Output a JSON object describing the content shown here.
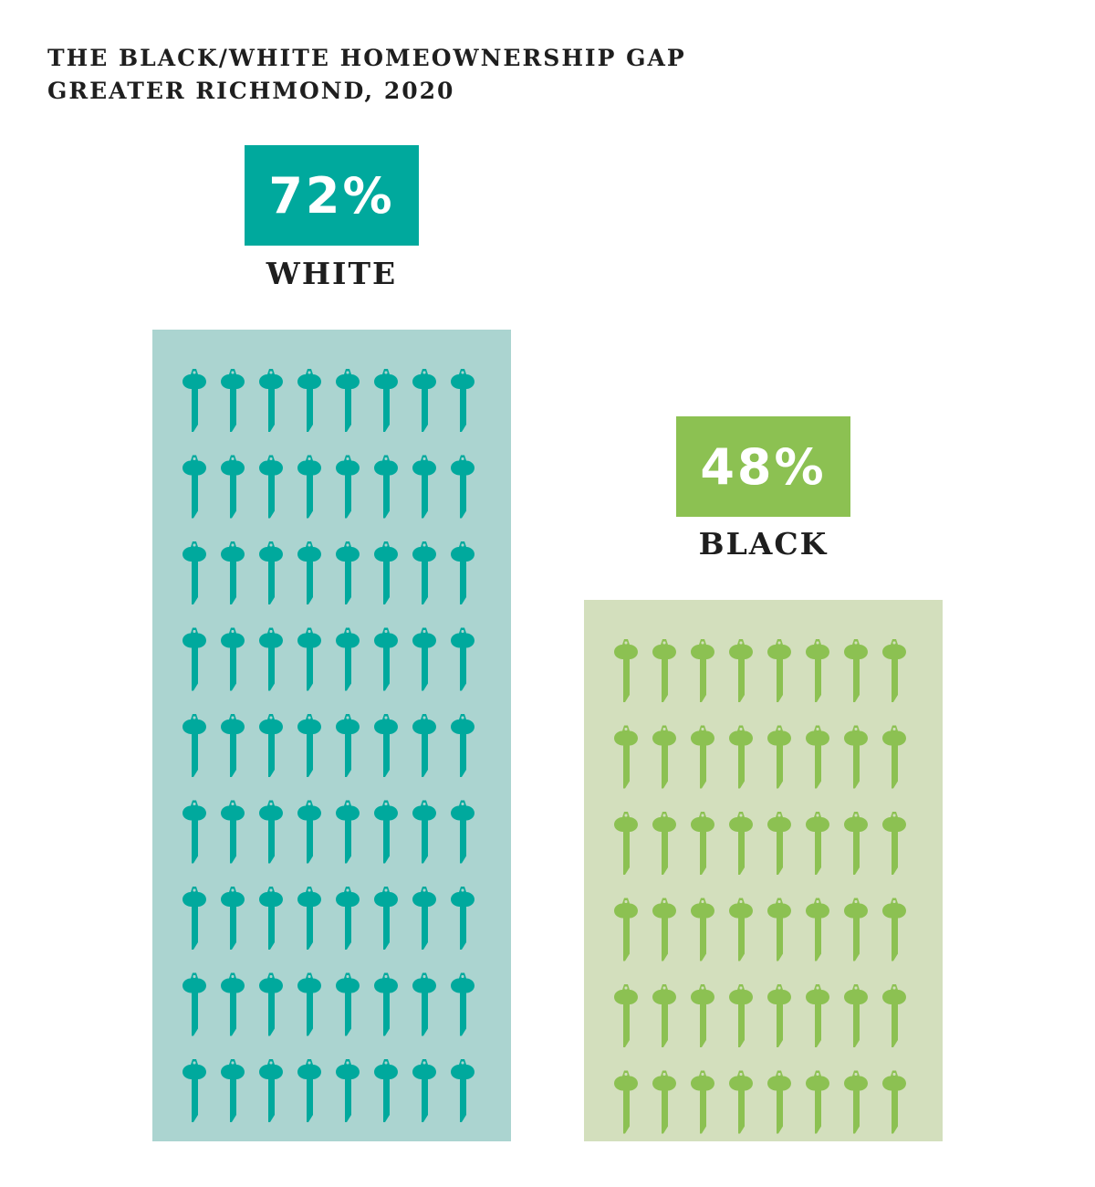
{
  "title": {
    "line1": "THE BLACK/WHITE HOMEOWNERSHIP GAP",
    "line2": "GREATER RICHMOND, 2020"
  },
  "chart_data": {
    "type": "bar",
    "title": "THE BLACK/WHITE HOMEOWNERSHIP GAP",
    "subtitle": "GREATER RICHMOND, 2020",
    "categories": [
      "WHITE",
      "BLACK"
    ],
    "values": [
      72,
      48
    ],
    "value_labels": [
      "72%",
      "48%"
    ],
    "icon": "key-icon",
    "icon_grid": [
      {
        "category": "WHITE",
        "rows": 9,
        "cols": 8
      },
      {
        "category": "BLACK",
        "rows": 6,
        "cols": 8
      }
    ],
    "colors": {
      "white_badge": "#00a99d",
      "white_panel": "#abd4d0",
      "white_key": "#00a99d",
      "black_badge": "#8cc152",
      "black_panel": "#d3dfbd",
      "black_key": "#8cc152"
    }
  }
}
